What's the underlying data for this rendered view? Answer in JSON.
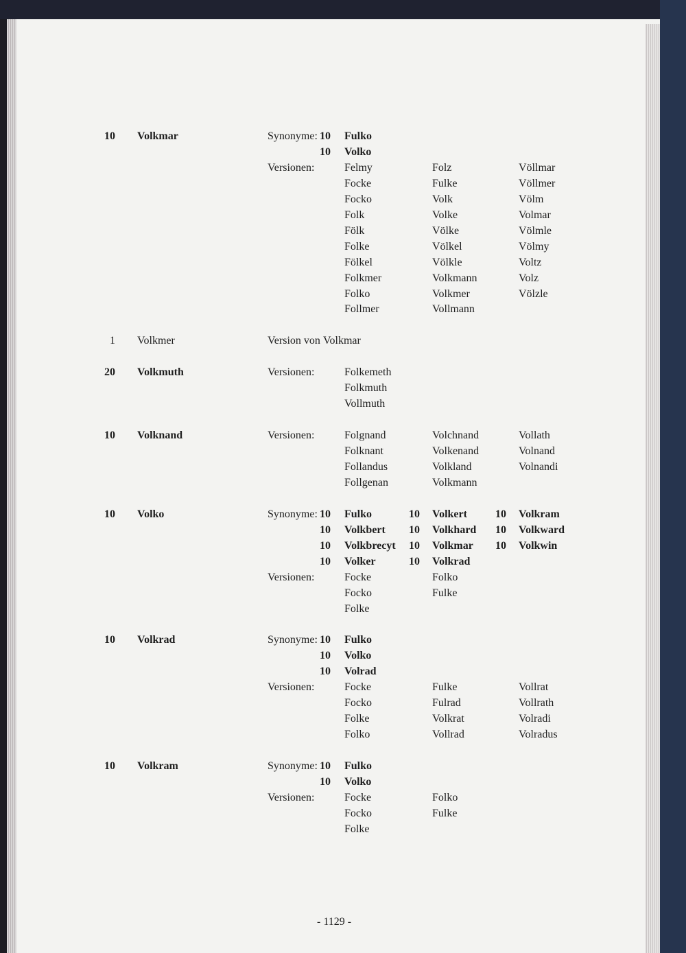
{
  "entries": [
    {
      "num": "10",
      "name": "Volkmar",
      "bold": true,
      "sections": [
        {
          "label": "Synonyme:",
          "bold": true,
          "columns": [
            [
              {
                "num": "10",
                "name": "Fulko"
              },
              {
                "num": "10",
                "name": "Volko"
              }
            ]
          ]
        },
        {
          "label": "Versionen:",
          "bold": false,
          "columns": [
            [
              "Felmy",
              "Focke",
              "Focko",
              "Folk",
              "Fölk",
              "Folke",
              "Fölkel",
              "Folkmer",
              "Folko",
              "Follmer"
            ],
            [
              "Folz",
              "Fulke",
              "Volk",
              "Volke",
              "Völke",
              "Völkel",
              "Völkle",
              "Volkmann",
              "Volkmer",
              "Vollmann"
            ],
            [
              "Völlmar",
              "Völlmer",
              "Völm",
              "Volmar",
              "Völmle",
              "Völmy",
              "Voltz",
              "Volz",
              "Völzle"
            ]
          ]
        }
      ]
    },
    {
      "num": "1",
      "name": "Volkmer",
      "bold": false,
      "sections": [
        {
          "label": "Version von",
          "bold": false,
          "inline": true,
          "columns": [
            [
              "Volkmar"
            ]
          ]
        }
      ]
    },
    {
      "num": "20",
      "name": "Volkmuth",
      "bold": true,
      "sections": [
        {
          "label": "Versionen:",
          "bold": false,
          "columns": [
            [
              "Folkemeth",
              "Folkmuth",
              "Vollmuth"
            ]
          ]
        }
      ]
    },
    {
      "num": "10",
      "name": "Volknand",
      "bold": true,
      "sections": [
        {
          "label": "Versionen:",
          "bold": false,
          "columns": [
            [
              "Folgnand",
              "Folknant",
              "Follandus",
              "Follgenan"
            ],
            [
              "Volchnand",
              "Volkenand",
              "Volkland",
              "Volkmann"
            ],
            [
              "Vollath",
              "Volnand",
              "Volnandi"
            ]
          ]
        }
      ]
    },
    {
      "num": "10",
      "name": "Volko",
      "bold": true,
      "sections": [
        {
          "label": "Synonyme:",
          "bold": true,
          "columns": [
            [
              {
                "num": "10",
                "name": "Fulko"
              },
              {
                "num": "10",
                "name": "Volkbert"
              },
              {
                "num": "10",
                "name": "Volkbrecyt"
              },
              {
                "num": "10",
                "name": "Volker"
              }
            ],
            [
              {
                "num": "10",
                "name": "Volkert"
              },
              {
                "num": "10",
                "name": "Volkhard"
              },
              {
                "num": "10",
                "name": "Volkmar"
              },
              {
                "num": "10",
                "name": "Volkrad"
              }
            ],
            [
              {
                "num": "10",
                "name": "Volkram"
              },
              {
                "num": "10",
                "name": "Volkward"
              },
              {
                "num": "10",
                "name": "Volkwin"
              }
            ]
          ]
        },
        {
          "label": "Versionen:",
          "bold": false,
          "columns": [
            [
              "Focke",
              "Focko",
              "Folke"
            ],
            [
              "Folko",
              "Fulke"
            ]
          ]
        }
      ]
    },
    {
      "num": "10",
      "name": "Volkrad",
      "bold": true,
      "sections": [
        {
          "label": "Synonyme:",
          "bold": true,
          "columns": [
            [
              {
                "num": "10",
                "name": "Fulko"
              },
              {
                "num": "10",
                "name": "Volko"
              },
              {
                "num": "10",
                "name": "Volrad"
              }
            ]
          ]
        },
        {
          "label": "Versionen:",
          "bold": false,
          "columns": [
            [
              "Focke",
              "Focko",
              "Folke",
              "Folko"
            ],
            [
              "Fulke",
              "Fulrad",
              "Volkrat",
              "Vollrad"
            ],
            [
              "Vollrat",
              "Vollrath",
              "Volradi",
              "Volradus"
            ]
          ]
        }
      ]
    },
    {
      "num": "10",
      "name": "Volkram",
      "bold": true,
      "sections": [
        {
          "label": "Synonyme:",
          "bold": true,
          "columns": [
            [
              {
                "num": "10",
                "name": "Fulko"
              },
              {
                "num": "10",
                "name": "Volko"
              }
            ]
          ]
        },
        {
          "label": "Versionen:",
          "bold": false,
          "columns": [
            [
              "Focke",
              "Focko",
              "Folke"
            ],
            [
              "Folko",
              "Fulke"
            ]
          ]
        }
      ]
    }
  ],
  "footer": "- 1129 -"
}
